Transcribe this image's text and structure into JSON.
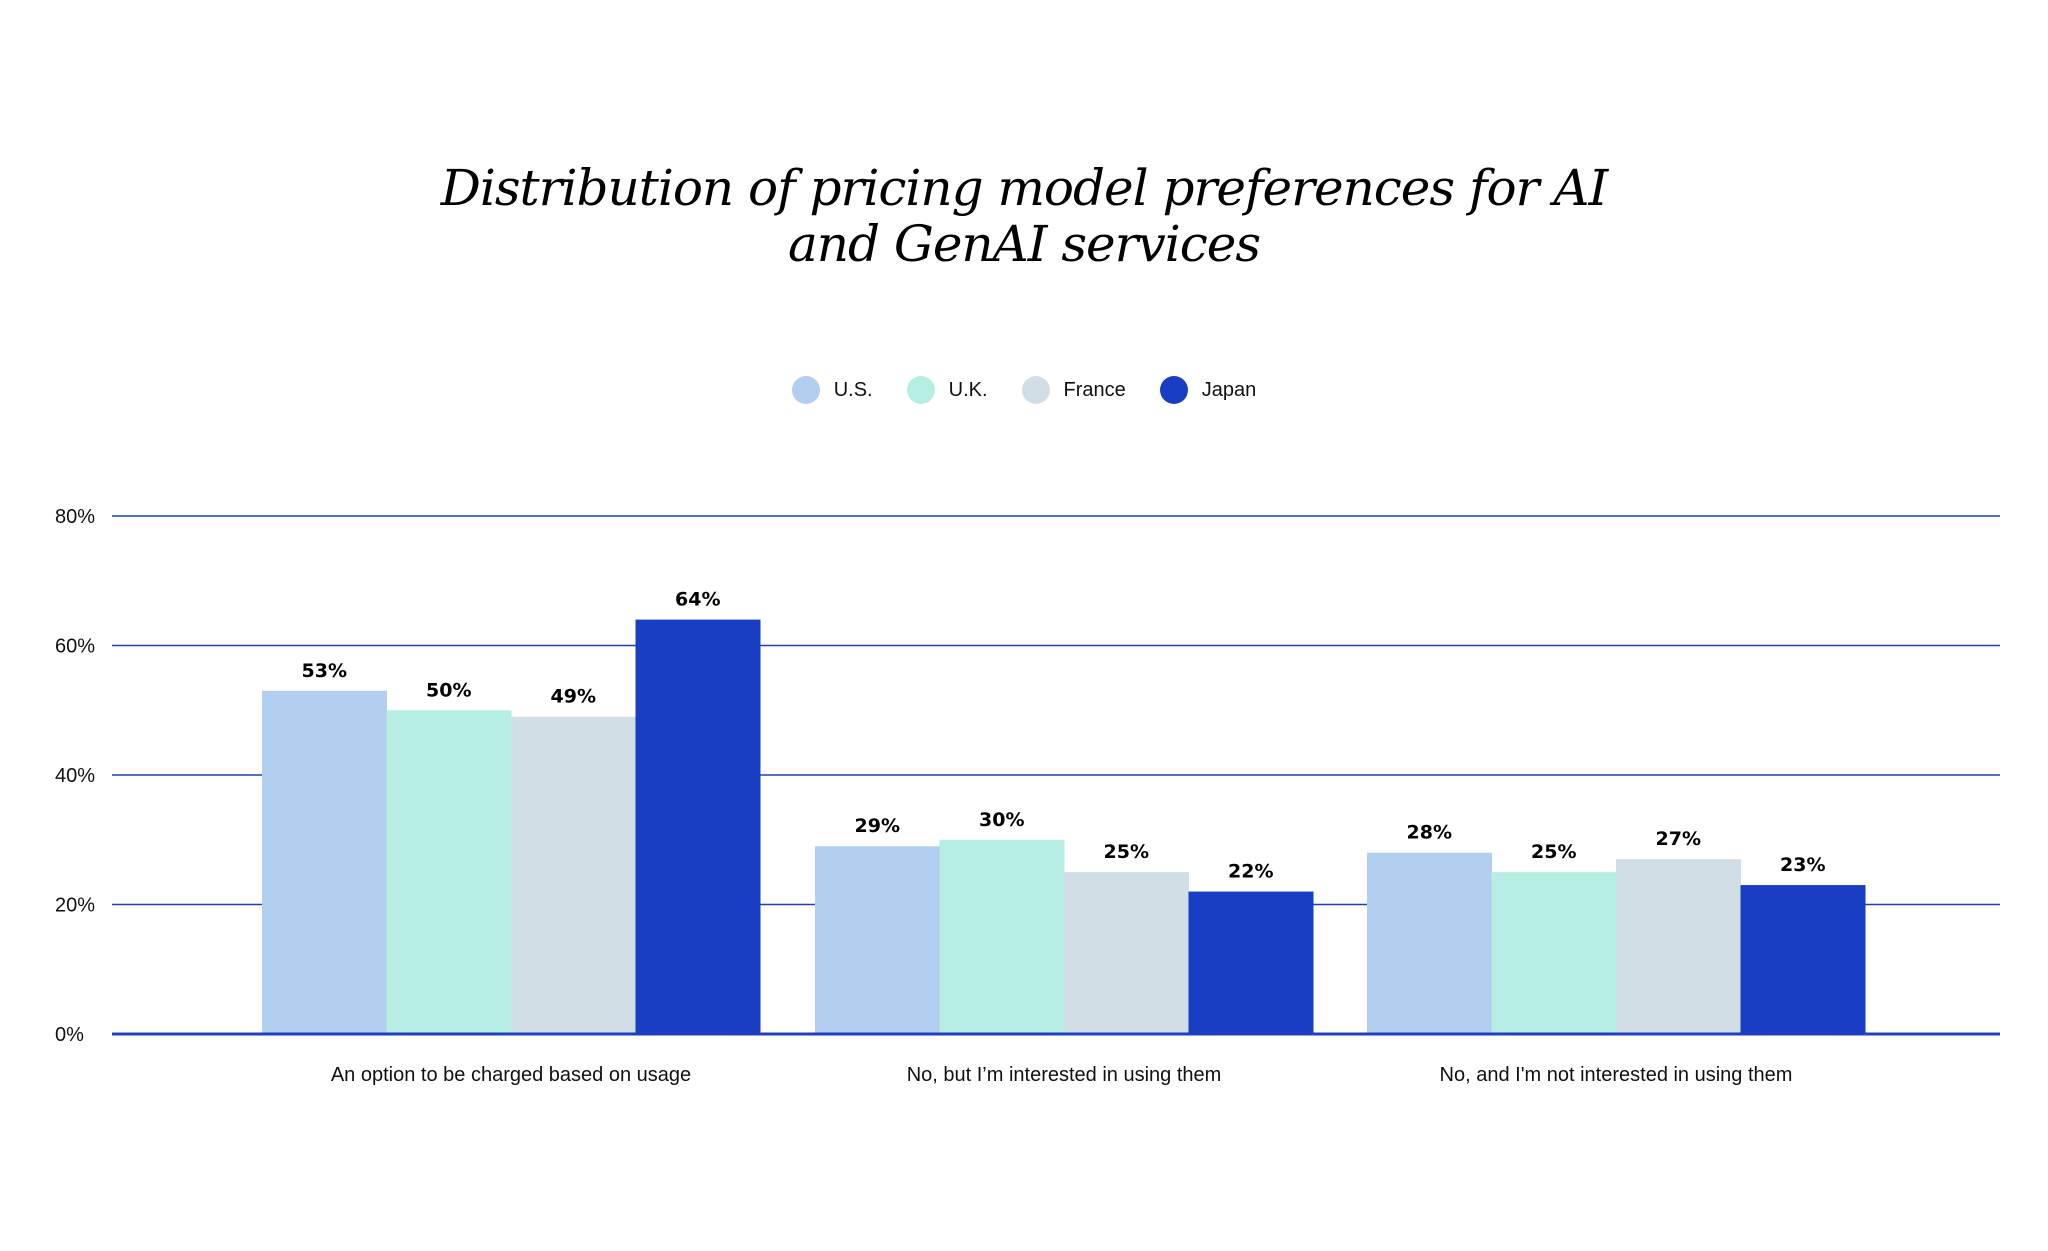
{
  "chart_data": {
    "type": "bar",
    "title_lines": [
      "Distribution of pricing model preferences for AI",
      "and GenAI services"
    ],
    "categories": [
      "An option to be charged based on usage",
      "No, but I’m interested in using them",
      "No, and I'm not interested in using them"
    ],
    "series": [
      {
        "name": "U.S.",
        "color": "#b2cff0",
        "values": [
          53,
          29,
          28
        ],
        "labels": [
          "53%",
          "29%",
          "28%"
        ]
      },
      {
        "name": "U.K.",
        "color": "#b6eee3",
        "values": [
          50,
          30,
          25
        ],
        "labels": [
          "50%",
          "30%",
          "25%"
        ]
      },
      {
        "name": "France",
        "color": "#d2dee6",
        "values": [
          49,
          25,
          27
        ],
        "labels": [
          "49%",
          "25%",
          "27%"
        ]
      },
      {
        "name": "Japan",
        "color": "#193ec3",
        "values": [
          64,
          22,
          23
        ],
        "labels": [
          "64%",
          "22%",
          "23%"
        ]
      }
    ],
    "ylim": [
      0,
      80
    ],
    "yticks": [
      0,
      20,
      40,
      60,
      80
    ],
    "ytick_labels": [
      "0%",
      "20%",
      "40%",
      "60%",
      "80%"
    ],
    "grid": true,
    "grid_color": "#1f3fbf",
    "legend_position": "top-center"
  }
}
